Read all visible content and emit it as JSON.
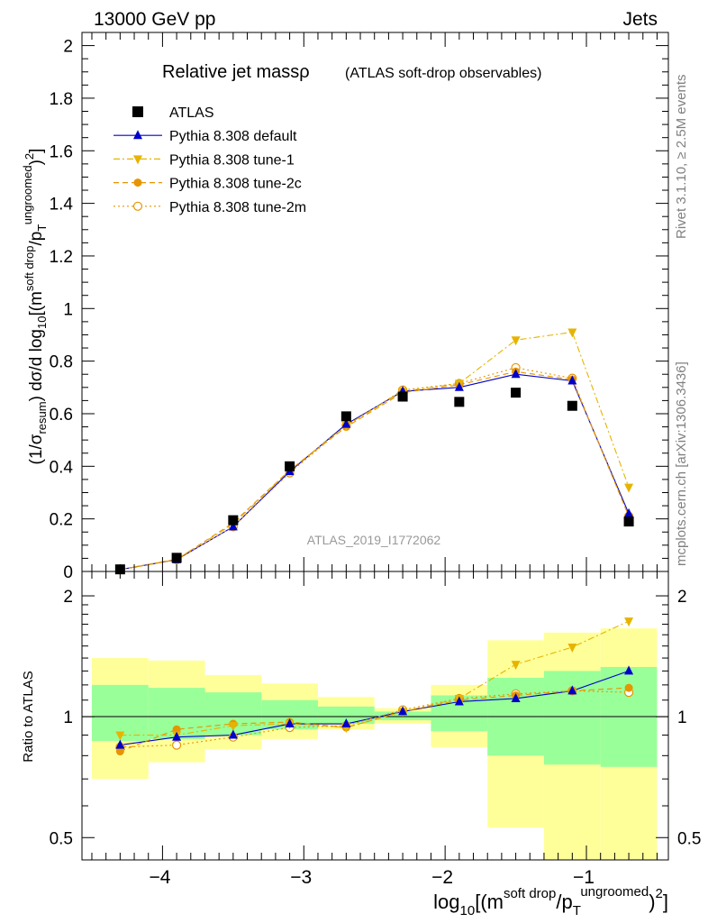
{
  "header": {
    "left": "13000 GeV pp",
    "right": "Jets"
  },
  "side_labels": {
    "rivet": "Rivet 3.1.10, ≥ 2.5M events",
    "mcplots": "mcplots.cern.ch [arXiv:1306.3436]"
  },
  "chart_data": [
    {
      "type": "line",
      "panel": "main",
      "title": "Relative jet massρ",
      "subtitle": "(ATLAS soft-drop observables)",
      "watermark": "ATLAS_2019_I1772062",
      "ylabel": "(1/σresum) dσ/d log10[(msoft drop/pTungroomed)2]",
      "ylim": [
        0,
        2.05
      ],
      "xlim": [
        -4.57,
        -0.42
      ],
      "yticks": [
        "0",
        "0.2",
        "0.4",
        "0.6",
        "0.8",
        "1",
        "1.2",
        "1.4",
        "1.6",
        "1.8",
        "2"
      ],
      "legend_position": "top-left",
      "x": [
        -4.3,
        -3.9,
        -3.5,
        -3.1,
        -2.7,
        -2.3,
        -1.9,
        -1.5,
        -1.1,
        -0.7
      ],
      "series": [
        {
          "name": "ATLAS",
          "color": "#000000",
          "marker": "square",
          "values": [
            0.008,
            0.052,
            0.195,
            0.4,
            0.59,
            0.665,
            0.645,
            0.68,
            0.63,
            0.19
          ]
        },
        {
          "name": "Pythia 8.308 default",
          "color": "#0000cc",
          "marker": "triangle-up",
          "dash": "",
          "values": [
            0.007,
            0.045,
            0.17,
            0.38,
            0.56,
            0.685,
            0.7,
            0.75,
            0.725,
            0.22
          ]
        },
        {
          "name": "Pythia 8.308 tune-1",
          "color": "#e6b400",
          "marker": "triangle-down",
          "dash": "7,3,2,3",
          "values": [
            0.008,
            0.047,
            0.18,
            0.385,
            0.555,
            0.685,
            0.715,
            0.88,
            0.91,
            0.32
          ]
        },
        {
          "name": "Pythia 8.308 tune-2c",
          "color": "#e69500",
          "marker": "circle",
          "dash": "6,4",
          "values": [
            0.007,
            0.045,
            0.185,
            0.385,
            0.55,
            0.68,
            0.71,
            0.76,
            0.73,
            0.21
          ]
        },
        {
          "name": "Pythia 8.308 tune-2m",
          "color": "#e69500",
          "marker": "circle-open",
          "dash": "2,3",
          "values": [
            0.007,
            0.045,
            0.17,
            0.375,
            0.555,
            0.69,
            0.715,
            0.775,
            0.735,
            0.21
          ]
        }
      ]
    },
    {
      "type": "line",
      "panel": "ratio",
      "ylabel": "Ratio to ATLAS",
      "xlabel": "log10[(msoft drop/pTungroomed)2]",
      "log_y": true,
      "ylim": [
        0.44,
        2.3
      ],
      "xlim": [
        -4.57,
        -0.42
      ],
      "yticks": [
        "0.5",
        "1",
        "2"
      ],
      "xticks": [
        "−4",
        "−3",
        "−2",
        "−1"
      ],
      "bands": {
        "x_edges": [
          -4.5,
          -4.1,
          -3.7,
          -3.3,
          -2.9,
          -2.5,
          -2.1,
          -1.7,
          -1.3,
          -0.9,
          -0.5
        ],
        "yellow_low": [
          0.7,
          0.77,
          0.83,
          0.88,
          0.93,
          0.96,
          0.84,
          0.53,
          0.39,
          0.37
        ],
        "yellow_high": [
          1.4,
          1.38,
          1.27,
          1.21,
          1.12,
          1.05,
          1.2,
          1.55,
          1.62,
          1.66
        ],
        "green_low": [
          0.87,
          0.88,
          0.9,
          0.93,
          0.96,
          0.98,
          0.92,
          0.8,
          0.76,
          0.75
        ],
        "green_high": [
          1.2,
          1.18,
          1.15,
          1.1,
          1.06,
          1.03,
          1.13,
          1.25,
          1.3,
          1.33
        ],
        "green_color": "#99ff99",
        "yellow_color": "#ffff99"
      },
      "x": [
        -4.3,
        -3.9,
        -3.5,
        -3.1,
        -2.7,
        -2.3,
        -1.9,
        -1.5,
        -1.1,
        -0.7
      ],
      "series": [
        {
          "name": "Pythia 8.308 default",
          "color": "#0000cc",
          "marker": "triangle-up",
          "dash": "",
          "values": [
            0.85,
            0.89,
            0.9,
            0.96,
            0.96,
            1.03,
            1.09,
            1.11,
            1.16,
            1.3
          ]
        },
        {
          "name": "Pythia 8.308 tune-1",
          "color": "#e6b400",
          "marker": "triangle-down",
          "dash": "7,3,2,3",
          "values": [
            0.9,
            0.9,
            0.95,
            0.96,
            0.94,
            1.03,
            1.11,
            1.35,
            1.49,
            1.73
          ]
        },
        {
          "name": "Pythia 8.308 tune-2c",
          "color": "#e69500",
          "marker": "circle",
          "dash": "6,4",
          "values": [
            0.82,
            0.93,
            0.96,
            0.97,
            0.94,
            1.03,
            1.1,
            1.13,
            1.16,
            1.18
          ]
        },
        {
          "name": "Pythia 8.308 tune-2m",
          "color": "#e69500",
          "marker": "circle-open",
          "dash": "2,3",
          "values": [
            0.84,
            0.85,
            0.89,
            0.94,
            0.95,
            1.04,
            1.11,
            1.14,
            1.16,
            1.15
          ]
        }
      ]
    }
  ]
}
